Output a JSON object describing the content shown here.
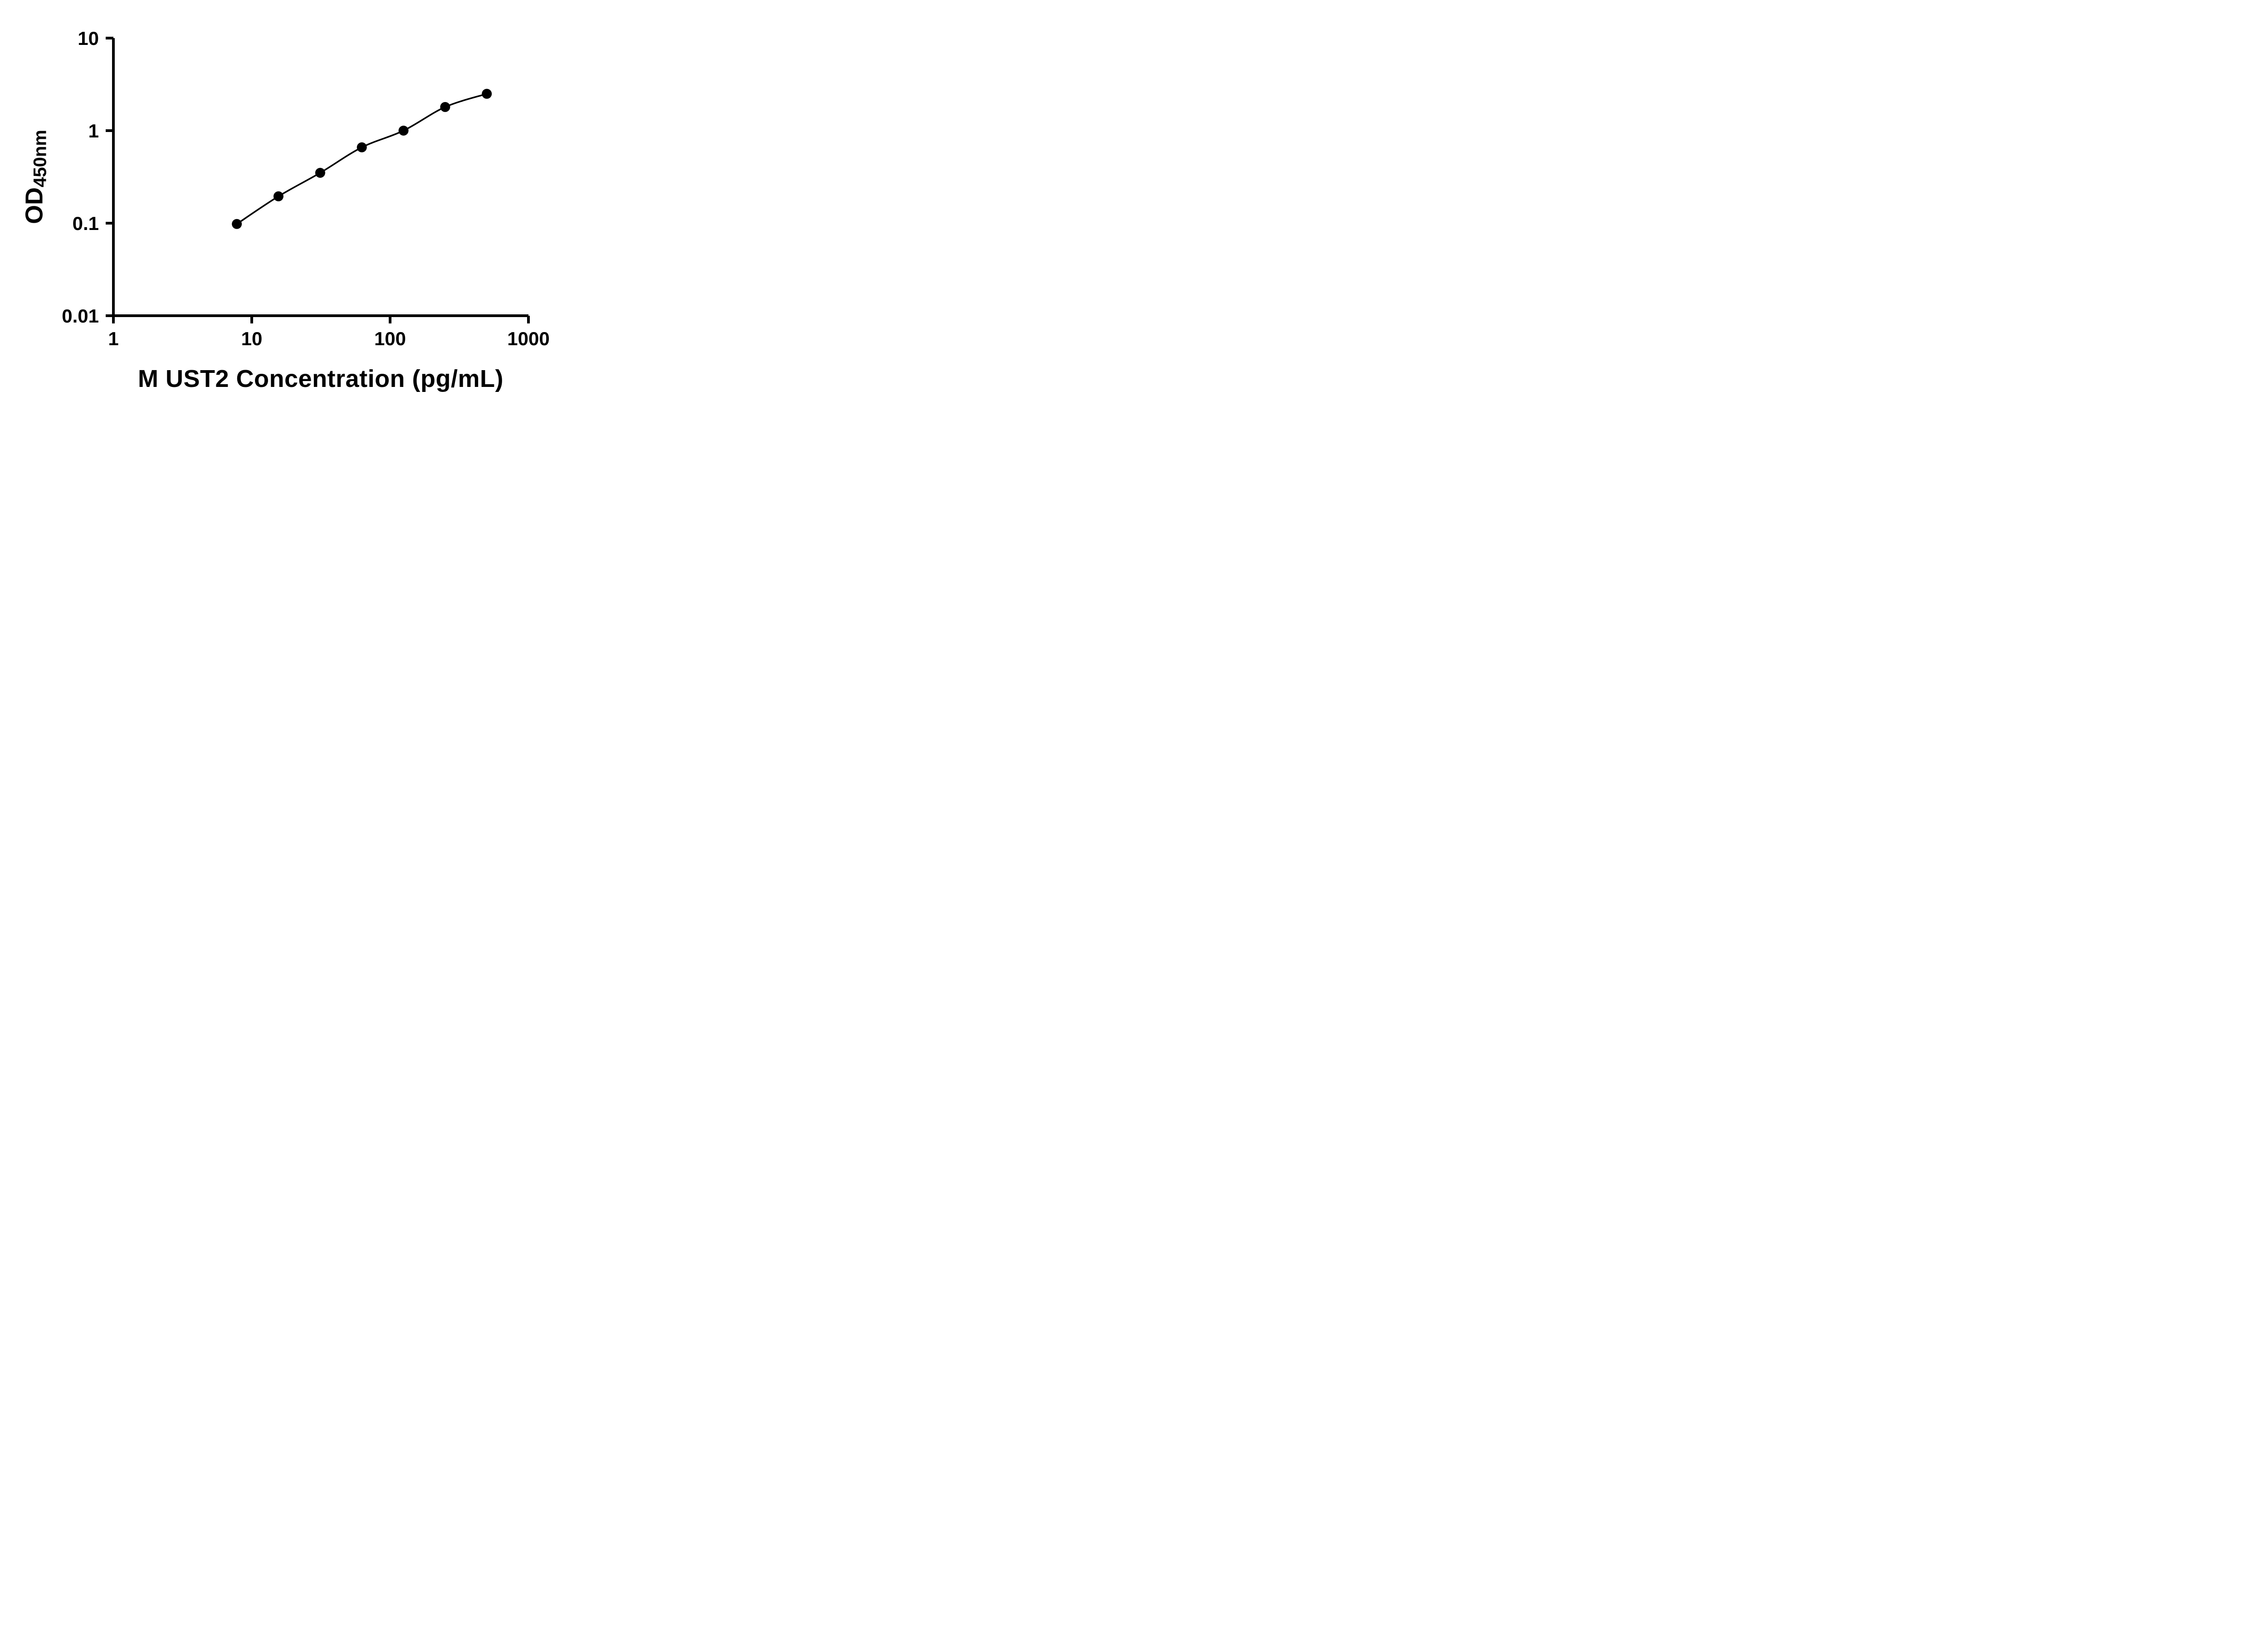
{
  "figure": {
    "background_color": "#ffffff"
  },
  "chart_data": {
    "type": "scatter",
    "title": "",
    "xlabel": "M UST2 Concentration (pg/mL)",
    "ylabel": "OD450nm",
    "ylabel_main": "OD",
    "ylabel_sub": "450nm",
    "xscale": "log",
    "yscale": "log",
    "xlim": [
      1,
      1000
    ],
    "ylim": [
      0.01,
      10
    ],
    "x_ticks": [
      1,
      10,
      100,
      1000
    ],
    "x_tick_labels": [
      "1",
      "10",
      "100",
      "1000"
    ],
    "y_ticks": [
      0.01,
      0.1,
      1,
      10
    ],
    "y_tick_labels": [
      "0.01",
      "0.1",
      "1",
      "10"
    ],
    "grid": false,
    "legend": null,
    "x": [
      7.8,
      15.6,
      31.25,
      62.5,
      125,
      250,
      500
    ],
    "y": [
      0.098,
      0.195,
      0.35,
      0.66,
      1.0,
      1.8,
      2.5
    ],
    "marker": "circle",
    "marker_color": "#000000",
    "line_color": "#000000",
    "axis_color": "#000000"
  }
}
